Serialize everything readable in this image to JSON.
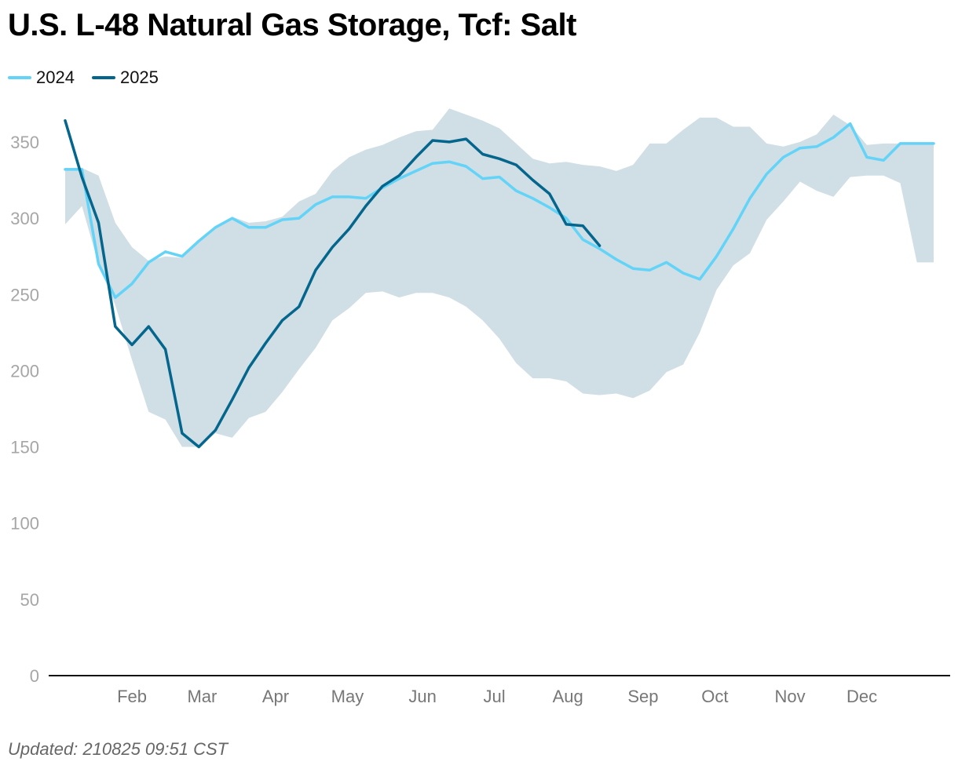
{
  "header": {
    "title": "U.S. L-48 Natural Gas Storage, Tcf: Salt"
  },
  "footer": {
    "updated": "Updated: 210825 09:51 CST"
  },
  "chart_data": {
    "type": "line",
    "title": "U.S. L-48 Natural Gas Storage, Tcf: Salt",
    "xlabel": "",
    "ylabel": "",
    "ylim": [
      0,
      375
    ],
    "xlim": [
      1,
      53
    ],
    "x_unit": "week of year",
    "y_ticks": [
      0,
      50,
      100,
      150,
      200,
      250,
      300,
      350
    ],
    "x_ticks": [
      {
        "label": "Feb",
        "week": 5.0
      },
      {
        "label": "Mar",
        "week": 9.2
      },
      {
        "label": "Apr",
        "week": 13.6
      },
      {
        "label": "May",
        "week": 17.9
      },
      {
        "label": "Jun",
        "week": 22.4
      },
      {
        "label": "Jul",
        "week": 26.7
      },
      {
        "label": "Aug",
        "week": 31.1
      },
      {
        "label": "Sep",
        "week": 35.6
      },
      {
        "label": "Oct",
        "week": 39.9
      },
      {
        "label": "Nov",
        "week": 44.4
      },
      {
        "label": "Dec",
        "week": 48.7
      }
    ],
    "grid": false,
    "legend_position": "top-left",
    "range_band": {
      "color": "#d0dfe5",
      "x": [
        1,
        2,
        3,
        4,
        5,
        6,
        7,
        8,
        9,
        10,
        11,
        12,
        13,
        14,
        15,
        16,
        17,
        18,
        19,
        20,
        21,
        22,
        23,
        24,
        25,
        26,
        27,
        28,
        29,
        30,
        31,
        32,
        33,
        34,
        35,
        36,
        37,
        38,
        39,
        40,
        41,
        42,
        43,
        44,
        45,
        46,
        47,
        48,
        49,
        50,
        51,
        52,
        53
      ],
      "min": [
        296,
        308,
        270,
        243,
        207,
        173,
        168,
        150,
        150,
        159,
        156,
        169,
        173,
        186,
        201,
        215,
        233,
        241,
        251,
        252,
        248,
        251,
        251,
        248,
        242,
        233,
        221,
        205,
        195,
        195,
        193,
        185,
        184,
        185,
        182,
        187,
        199,
        204,
        225,
        253,
        269,
        277,
        299,
        311,
        324,
        318,
        314,
        327,
        328,
        328,
        323,
        271,
        271
      ],
      "max": [
        333,
        333,
        328,
        297,
        281,
        272,
        275,
        274,
        284,
        294,
        301,
        297,
        298,
        301,
        311,
        316,
        331,
        340,
        345,
        348,
        353,
        357,
        358,
        372,
        368,
        364,
        359,
        349,
        339,
        336,
        337,
        335,
        334,
        331,
        335,
        349,
        349,
        358,
        366,
        366,
        360,
        360,
        349,
        347,
        350,
        355,
        368,
        361,
        348,
        349,
        349,
        349,
        349
      ]
    },
    "series": [
      {
        "name": "2024",
        "color": "#63d3f7",
        "x": [
          1,
          2,
          3,
          4,
          5,
          6,
          7,
          8,
          9,
          10,
          11,
          12,
          13,
          14,
          15,
          16,
          17,
          18,
          19,
          20,
          21,
          22,
          23,
          24,
          25,
          26,
          27,
          28,
          29,
          30,
          31,
          32,
          33,
          34,
          35,
          36,
          37,
          38,
          39,
          40,
          41,
          42,
          43,
          44,
          45,
          46,
          47,
          48,
          49,
          50,
          51,
          52,
          53
        ],
        "values": [
          332,
          332,
          270,
          248,
          257,
          271,
          278,
          275,
          285,
          294,
          300,
          294,
          294,
          299,
          300,
          309,
          314,
          314,
          313,
          320,
          326,
          331,
          336,
          337,
          334,
          326,
          327,
          318,
          313,
          307,
          300,
          286,
          280,
          273,
          267,
          266,
          271,
          264,
          260,
          275,
          293,
          313,
          329,
          340,
          346,
          347,
          353,
          362,
          340,
          338,
          349,
          349,
          349
        ]
      },
      {
        "name": "2025",
        "color": "#05668d",
        "x": [
          1,
          2,
          3,
          4,
          5,
          6,
          7,
          8,
          9,
          10,
          11,
          12,
          13,
          14,
          15,
          16,
          17,
          18,
          19,
          20,
          21,
          22,
          23,
          24,
          25,
          26,
          27,
          28,
          29,
          30,
          31,
          32,
          33
        ],
        "values": [
          364,
          327,
          297,
          229,
          217,
          229,
          214,
          159,
          150,
          161,
          181,
          202,
          218,
          233,
          242,
          266,
          281,
          293,
          308,
          321,
          328,
          340,
          351,
          350,
          352,
          342,
          339,
          335,
          325,
          316,
          296,
          295,
          282
        ]
      }
    ]
  }
}
